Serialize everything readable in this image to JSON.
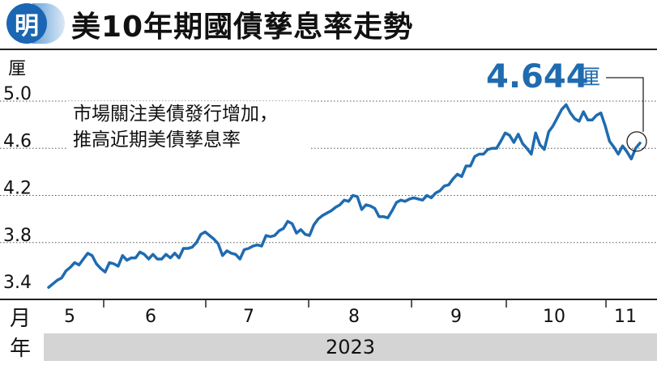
{
  "header": {
    "logo_text": "明",
    "title": "美10年期國債孳息率走勢"
  },
  "chart_data": {
    "type": "line",
    "title": "美10年期國債孳息率走勢",
    "unit_label": "厘",
    "x_unit_label": "月",
    "year_unit_label": "年",
    "year": "2023",
    "annotation": [
      "市場關注美債發行增加，",
      "推高近期美債孳息率"
    ],
    "callout_value": "4.644",
    "callout_unit": "厘",
    "y_ticks": [
      "5.0",
      "4.6",
      "4.2",
      "3.8",
      "3.4"
    ],
    "ylim": [
      3.4,
      5.0
    ],
    "gridlines": "dotted horizontal",
    "month_ticks": [
      "5",
      "6",
      "7",
      "8",
      "9",
      "10",
      "11"
    ],
    "line_color": "#1f6bb0",
    "series": [
      {
        "values": [
          3.42,
          3.45,
          3.48,
          3.5,
          3.56,
          3.59,
          3.63,
          3.61,
          3.66,
          3.71,
          3.69,
          3.62,
          3.58,
          3.55,
          3.63,
          3.62,
          3.6,
          3.69,
          3.65,
          3.67,
          3.67,
          3.72,
          3.7,
          3.66,
          3.7,
          3.66,
          3.66,
          3.7,
          3.67,
          3.71,
          3.67,
          3.75,
          3.75,
          3.76,
          3.8,
          3.87,
          3.89,
          3.86,
          3.83,
          3.79,
          3.69,
          3.73,
          3.71,
          3.7,
          3.66,
          3.74,
          3.75,
          3.77,
          3.78,
          3.77,
          3.86,
          3.85,
          3.86,
          3.9,
          3.92,
          3.98,
          3.96,
          3.88,
          3.91,
          3.87,
          3.86,
          3.95,
          4.0,
          4.03,
          4.05,
          4.07,
          4.1,
          4.12,
          4.16,
          4.15,
          4.2,
          4.19,
          4.08,
          4.12,
          4.11,
          4.09,
          4.02,
          4.02,
          4.01,
          4.07,
          4.14,
          4.16,
          4.15,
          4.17,
          4.18,
          4.17,
          4.16,
          4.2,
          4.18,
          4.22,
          4.24,
          4.28,
          4.29,
          4.34,
          4.38,
          4.36,
          4.45,
          4.45,
          4.53,
          4.55,
          4.55,
          4.59,
          4.6,
          4.6,
          4.66,
          4.73,
          4.71,
          4.65,
          4.72,
          4.64,
          4.6,
          4.55,
          4.73,
          4.63,
          4.59,
          4.74,
          4.79,
          4.86,
          4.93,
          4.97,
          4.9,
          4.85,
          4.83,
          4.91,
          4.84,
          4.84,
          4.88,
          4.9,
          4.79,
          4.66,
          4.61,
          4.55,
          4.62,
          4.57,
          4.51,
          4.6,
          4.644
        ]
      }
    ]
  }
}
